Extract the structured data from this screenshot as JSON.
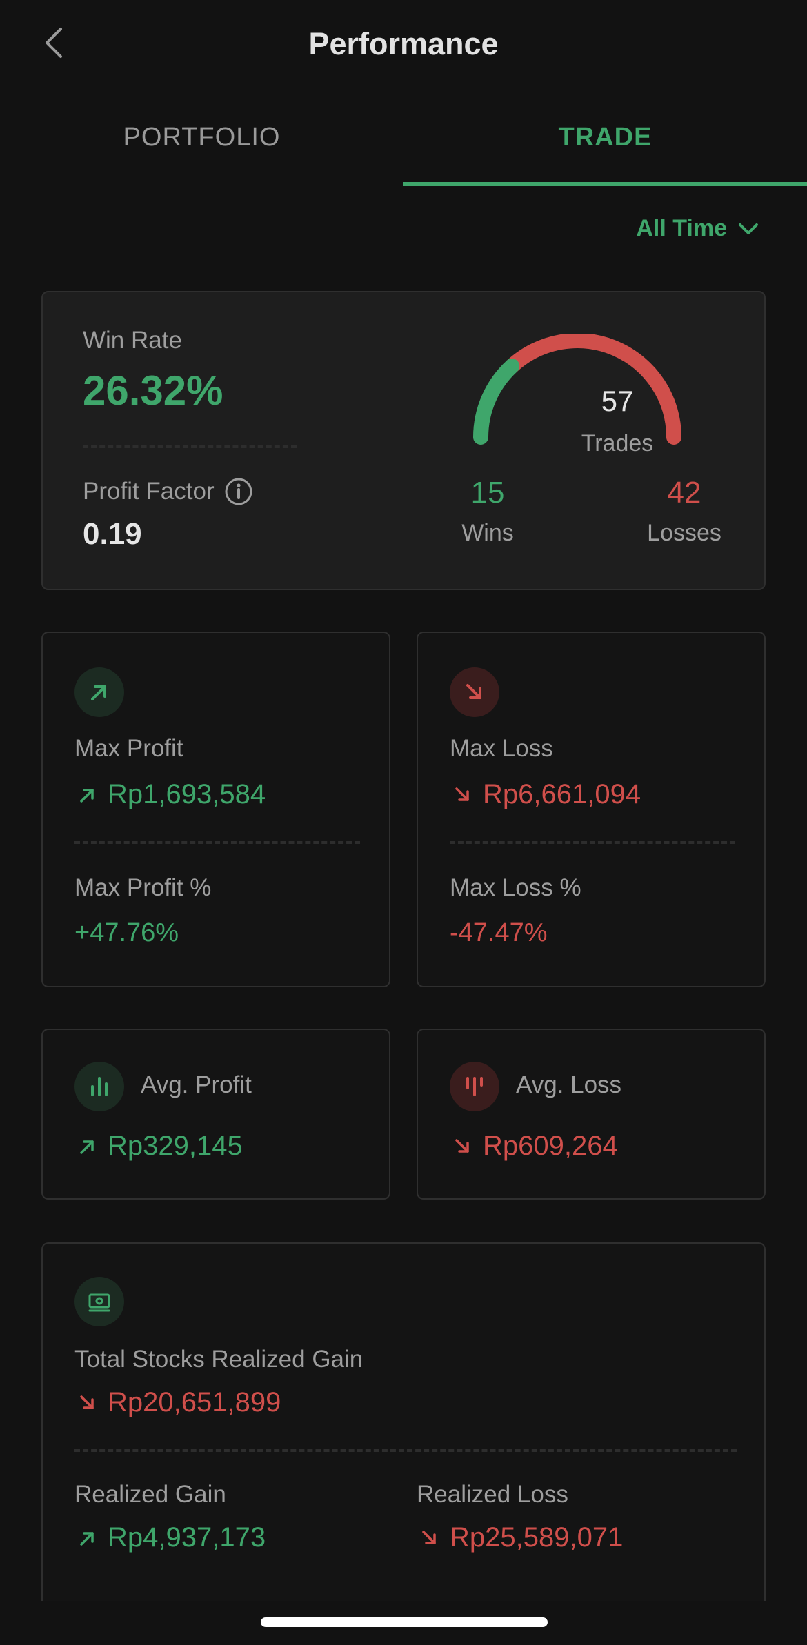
{
  "header": {
    "title": "Performance",
    "back_icon": "chevron-left-icon"
  },
  "tabs": [
    {
      "label": "PORTFOLIO",
      "active": false
    },
    {
      "label": "TRADE",
      "active": true
    }
  ],
  "filter": {
    "label": "All Time",
    "icon": "chevron-down-icon"
  },
  "summary": {
    "win_rate_label": "Win Rate",
    "win_rate": "26.32%",
    "profit_factor_label": "Profit Factor",
    "profit_factor": "0.19",
    "trades_count": "57",
    "trades_label": "Trades",
    "wins_count": "15",
    "wins_label": "Wins",
    "losses_count": "42",
    "losses_label": "Losses",
    "gauge_win_fraction": 0.2632
  },
  "max_profit": {
    "label": "Max Profit",
    "value": "Rp1,693,584",
    "pct_label": "Max Profit %",
    "pct_value": "+47.76%"
  },
  "max_loss": {
    "label": "Max Loss",
    "value": "Rp6,661,094",
    "pct_label": "Max Loss %",
    "pct_value": "-47.47%"
  },
  "avg_profit": {
    "label": "Avg. Profit",
    "value": "Rp329,145"
  },
  "avg_loss": {
    "label": "Avg. Loss",
    "value": "Rp609,264"
  },
  "total": {
    "label": "Total Stocks Realized Gain",
    "value": "Rp20,651,899",
    "gain_label": "Realized Gain",
    "gain_value": "Rp4,937,173",
    "loss_label": "Realized Loss",
    "loss_value": "Rp25,589,071"
  },
  "colors": {
    "green": "#3fa66b",
    "red": "#d04f4b",
    "background": "#121212"
  }
}
